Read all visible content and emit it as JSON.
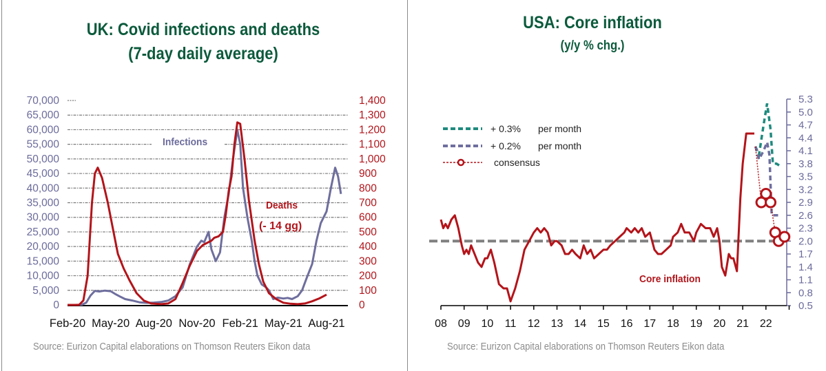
{
  "chart_data": [
    {
      "type": "line",
      "title": "UK: Covid infections and deaths",
      "subtitle": "(7-day daily average)",
      "source": "Source: Eurizon Capital elaborations on Thomson Reuters Eikon data",
      "x_tick_labels": [
        "Feb-20",
        "May-20",
        "Aug-20",
        "Nov-20",
        "Feb-21",
        "May-21",
        "Aug-21"
      ],
      "y_left": {
        "ylim": [
          0,
          70000
        ],
        "tick_labels": [
          "0",
          "5,000",
          "10,000",
          "15,000",
          "20,000",
          "25,000",
          "30,000",
          "35,000",
          "40,000",
          "45,000",
          "50,000",
          "55,000",
          "60,000",
          "65,000",
          "70,000"
        ]
      },
      "y_right": {
        "ylim": [
          0,
          1400
        ],
        "tick_labels": [
          "0",
          "100",
          "200",
          "300",
          "400",
          "500",
          "600",
          "700",
          "800",
          "900",
          "1,000",
          "1,100",
          "1,200",
          "1,300",
          "1,400"
        ]
      },
      "grid": true,
      "annotations": [
        {
          "text": "Infections",
          "color": "#6b6b9c"
        },
        {
          "text": "Deaths",
          "color": "#b0151b"
        },
        {
          "text": "(- 14 gg)",
          "color": "#b0151b"
        }
      ],
      "series": [
        {
          "name": "Infections",
          "axis": "left",
          "color": "#6e6e9e",
          "x_months": [
            0,
            0.5,
            1,
            1.3,
            1.6,
            1.9,
            2.2,
            2.6,
            3,
            3.3,
            3.6,
            4,
            4.5,
            5,
            5.5,
            6,
            6.5,
            7,
            7.5,
            8,
            8.5,
            9,
            9.3,
            9.5,
            9.8,
            10,
            10.3,
            10.6,
            10.9,
            11.2,
            11.5,
            11.8,
            12,
            12.2,
            12.5,
            12.8,
            13,
            13.2,
            13.5,
            13.8,
            14,
            14.3,
            14.6,
            15,
            15.3,
            15.6,
            16,
            16.3,
            16.6,
            17,
            17.3,
            17.6,
            18,
            18.3,
            18.6,
            18.8,
            19
          ],
          "values": [
            0,
            0,
            100,
            800,
            3200,
            4800,
            4600,
            4900,
            4700,
            3800,
            3000,
            2000,
            1500,
            900,
            700,
            800,
            1000,
            1500,
            3000,
            6000,
            14000,
            20000,
            22000,
            21500,
            25000,
            19000,
            15000,
            18000,
            30000,
            38000,
            50000,
            60000,
            55000,
            40000,
            30000,
            22000,
            15000,
            10000,
            7000,
            6000,
            5000,
            2000,
            2500,
            2200,
            2400,
            2000,
            3000,
            5000,
            9000,
            14000,
            22000,
            28000,
            32000,
            40000,
            47000,
            44000,
            38000
          ]
        },
        {
          "name": "Deaths (- 14 gg)",
          "axis": "right",
          "color": "#b3141a",
          "x_months": [
            0,
            0.8,
            1.1,
            1.4,
            1.7,
            1.9,
            2.1,
            2.4,
            2.8,
            3.2,
            3.5,
            3.9,
            4.3,
            4.8,
            5.3,
            5.8,
            6.5,
            7,
            7.5,
            8,
            8.5,
            9,
            9.4,
            9.8,
            10,
            10.2,
            10.5,
            10.8,
            11,
            11.2,
            11.4,
            11.6,
            11.8,
            12,
            12.3,
            12.6,
            13,
            13.3,
            13.6,
            14,
            14.5,
            15,
            15.5,
            16,
            16.5,
            17,
            17.5,
            18
          ],
          "values": [
            0,
            0,
            30,
            200,
            700,
            900,
            940,
            870,
            700,
            500,
            350,
            250,
            170,
            80,
            30,
            10,
            5,
            10,
            40,
            150,
            270,
            370,
            410,
            430,
            440,
            460,
            470,
            500,
            620,
            780,
            880,
            1100,
            1250,
            1240,
            1000,
            720,
            440,
            280,
            160,
            80,
            40,
            15,
            8,
            5,
            10,
            25,
            45,
            70
          ]
        }
      ]
    },
    {
      "type": "line",
      "title": "USA: Core inflation",
      "subtitle": "(y/y % chg.)",
      "source": "Source: Eurizon Capital elaborations on Thomson Reuters Eikon data",
      "x_tick_labels": [
        "08",
        "09",
        "10",
        "11",
        "12",
        "13",
        "14",
        "15",
        "16",
        "17",
        "18",
        "19",
        "20",
        "21",
        "22"
      ],
      "y_right": {
        "ylim": [
          0.5,
          5.3
        ],
        "tick_labels": [
          "0.5",
          "0.8",
          "1.1",
          "1.4",
          "1.7",
          "2.0",
          "2.3",
          "2.6",
          "2.9",
          "3.2",
          "3.5",
          "3.8",
          "4.1",
          "4.4",
          "4.7",
          "5.0",
          "5.3"
        ]
      },
      "reference_line": {
        "value": 2.0,
        "style": "dashed",
        "color": "#808080"
      },
      "annotations": [
        {
          "text": "Core inflation",
          "color": "#b0151b"
        }
      ],
      "legend": {
        "position": "top-left",
        "entries": [
          {
            "label": "+ 0.3%",
            "suffix": "per month",
            "color": "#1f8a7e",
            "style": "dashed"
          },
          {
            "label": "+ 0.2%",
            "suffix": "per month",
            "color": "#6e6e9e",
            "style": "dashed"
          },
          {
            "label": "consensus",
            "suffix": "",
            "color": "#b3141a",
            "style": "dotted-with-circle"
          }
        ]
      },
      "series": [
        {
          "name": "Core inflation",
          "color": "#b3141a",
          "x": [
            2008.0,
            2008.1,
            2008.2,
            2008.3,
            2008.45,
            2008.6,
            2008.75,
            2008.9,
            2009.0,
            2009.1,
            2009.2,
            2009.3,
            2009.45,
            2009.6,
            2009.75,
            2009.9,
            2010.0,
            2010.15,
            2010.3,
            2010.5,
            2010.7,
            2010.85,
            2011.0,
            2011.2,
            2011.4,
            2011.6,
            2011.8,
            2012.0,
            2012.15,
            2012.3,
            2012.45,
            2012.6,
            2012.75,
            2012.9,
            2013.0,
            2013.2,
            2013.35,
            2013.5,
            2013.65,
            2013.8,
            2014.0,
            2014.15,
            2014.3,
            2014.45,
            2014.6,
            2014.8,
            2015.0,
            2015.15,
            2015.3,
            2015.5,
            2015.7,
            2015.9,
            2016.0,
            2016.2,
            2016.35,
            2016.5,
            2016.65,
            2016.8,
            2017.0,
            2017.2,
            2017.35,
            2017.5,
            2017.7,
            2017.9,
            2018.0,
            2018.2,
            2018.35,
            2018.5,
            2018.7,
            2018.9,
            2019.0,
            2019.2,
            2019.4,
            2019.6,
            2019.75,
            2019.9,
            2020.0,
            2020.1,
            2020.25,
            2020.4,
            2020.5,
            2020.6,
            2020.75,
            2020.9,
            2021.0,
            2021.15,
            2021.3,
            2021.4,
            2021.5
          ],
          "values": [
            2.5,
            2.3,
            2.4,
            2.3,
            2.5,
            2.6,
            2.3,
            1.9,
            1.7,
            1.8,
            1.7,
            1.9,
            1.7,
            1.5,
            1.4,
            1.6,
            1.6,
            1.8,
            1.5,
            1.0,
            0.9,
            0.9,
            0.6,
            0.9,
            1.3,
            1.8,
            2.0,
            2.2,
            2.3,
            2.2,
            2.3,
            2.2,
            1.9,
            2.0,
            2.0,
            1.9,
            1.7,
            1.7,
            1.8,
            1.7,
            1.6,
            1.9,
            1.7,
            1.8,
            1.6,
            1.7,
            1.8,
            1.8,
            1.9,
            2.0,
            2.1,
            2.2,
            2.3,
            2.2,
            2.3,
            2.2,
            2.3,
            2.1,
            2.2,
            1.8,
            1.7,
            1.7,
            1.8,
            1.9,
            2.1,
            2.2,
            2.4,
            2.2,
            2.2,
            2.0,
            2.2,
            2.4,
            2.3,
            2.3,
            2.1,
            2.3,
            2.0,
            1.4,
            1.2,
            1.7,
            1.6,
            1.6,
            1.3,
            3.0,
            3.8,
            4.5,
            4.5,
            4.5,
            4.5
          ]
        },
        {
          "name": "+ 0.3% per month",
          "color": "#1f8a7e",
          "x": [
            2021.55,
            2021.7,
            2021.9,
            2022.05,
            2022.2,
            2022.3,
            2022.45,
            2022.6
          ],
          "values": [
            4.2,
            4.0,
            4.7,
            5.2,
            4.6,
            3.8,
            3.8,
            3.75
          ]
        },
        {
          "name": "+ 0.2% per month",
          "color": "#6e6e9e",
          "x": [
            2021.55,
            2021.7,
            2021.9,
            2022.05,
            2022.15,
            2022.25,
            2022.4,
            2022.6
          ],
          "values": [
            4.2,
            3.9,
            4.1,
            4.3,
            4.0,
            2.6,
            2.6,
            2.6
          ]
        },
        {
          "name": "consensus",
          "color": "#b3141a",
          "x": [
            2021.55,
            2021.8,
            2022.0,
            2022.2,
            2022.4,
            2022.55,
            2022.8
          ],
          "values": [
            4.2,
            2.9,
            3.1,
            2.9,
            2.2,
            2.0,
            2.1
          ]
        }
      ]
    }
  ]
}
